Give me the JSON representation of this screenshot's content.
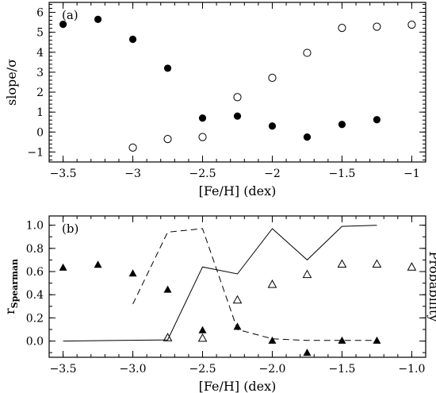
{
  "chart_data": [
    {
      "type": "scatter",
      "panel_label": "(a)",
      "xlabel": "[Fe/H] (dex)",
      "ylabel": "slope/σ",
      "xlim": [
        -3.6,
        -0.9
      ],
      "ylim": [
        -1.5,
        6.5
      ],
      "xticks": [
        -3.5,
        -3.0,
        -2.5,
        -2.0,
        -1.5,
        -1.0
      ],
      "xtick_labels": [
        "−3.5",
        "−3",
        "−2.5",
        "−2",
        "−1.5",
        "−1"
      ],
      "yticks": [
        -1,
        0,
        1,
        2,
        3,
        4,
        5,
        6
      ],
      "ytick_labels": [
        "−1",
        "0",
        "1",
        "2",
        "3",
        "4",
        "5",
        "6"
      ],
      "legend": "none",
      "series": [
        {
          "marker": "filled-circle",
          "x": [
            -3.5,
            -3.25,
            -3.0,
            -2.75,
            -2.5,
            -2.25,
            -2.0,
            -1.75,
            -1.5,
            -1.25
          ],
          "y": [
            5.4,
            5.65,
            4.65,
            3.2,
            0.7,
            0.8,
            0.3,
            -0.25,
            0.38,
            0.62
          ]
        },
        {
          "marker": "open-circle",
          "x": [
            -3.0,
            -2.75,
            -2.5,
            -2.25,
            -2.0,
            -1.75,
            -1.5,
            -1.25,
            -1.0
          ],
          "y": [
            -0.78,
            -0.35,
            -0.25,
            1.75,
            2.72,
            3.97,
            5.22,
            5.28,
            5.38
          ]
        }
      ]
    },
    {
      "type": "scatter",
      "panel_label": "(b)",
      "xlabel": "[Fe/H] (dex)",
      "ylabel_main": "r",
      "ylabel_sub": "Spearman",
      "ylabel_right": "Probability",
      "xlim": [
        -3.6,
        -0.9
      ],
      "ylim": [
        -0.14,
        1.08
      ],
      "xticks": [
        -3.5,
        -3.0,
        -2.5,
        -2.0,
        -1.5,
        -1.0
      ],
      "xtick_labels": [
        "−3.5",
        "−3.0",
        "−2.5",
        "−2.0",
        "−1.5",
        "−1.0"
      ],
      "yticks": [
        0.0,
        0.2,
        0.4,
        0.6,
        0.8,
        1.0
      ],
      "ytick_labels": [
        "0.0",
        "0.2",
        "0.4",
        "0.6",
        "0.8",
        "1.0"
      ],
      "legend": "none",
      "series": [
        {
          "marker": "filled-triangle",
          "x": [
            -3.5,
            -3.25,
            -3.0,
            -2.75,
            -2.5,
            -2.25,
            -2.0,
            -1.75,
            -1.5,
            -1.25
          ],
          "y": [
            0.635,
            0.66,
            0.585,
            0.445,
            0.095,
            0.125,
            0.005,
            -0.1,
            0.005,
            0.005
          ]
        },
        {
          "marker": "open-triangle",
          "x": [
            -2.75,
            -2.5,
            -2.25,
            -2.0,
            -1.75,
            -1.5,
            -1.25,
            -1.0
          ],
          "y": [
            0.03,
            0.025,
            0.355,
            0.49,
            0.575,
            0.665,
            0.665,
            0.64
          ]
        },
        {
          "marker": "solid-line",
          "x": [
            -3.5,
            -2.75,
            -2.5,
            -2.25,
            -2.0,
            -1.75,
            -1.5,
            -1.25
          ],
          "y": [
            0.0,
            0.01,
            0.64,
            0.58,
            0.97,
            0.7,
            0.99,
            1.0
          ]
        },
        {
          "marker": "dashed-line",
          "x": [
            -3.0,
            -2.75,
            -2.5,
            -2.25,
            -2.0,
            -1.75,
            -1.5,
            -1.25
          ],
          "y": [
            0.32,
            0.94,
            0.97,
            0.1,
            0.02,
            0.005,
            0.005,
            0.005
          ]
        }
      ]
    }
  ]
}
